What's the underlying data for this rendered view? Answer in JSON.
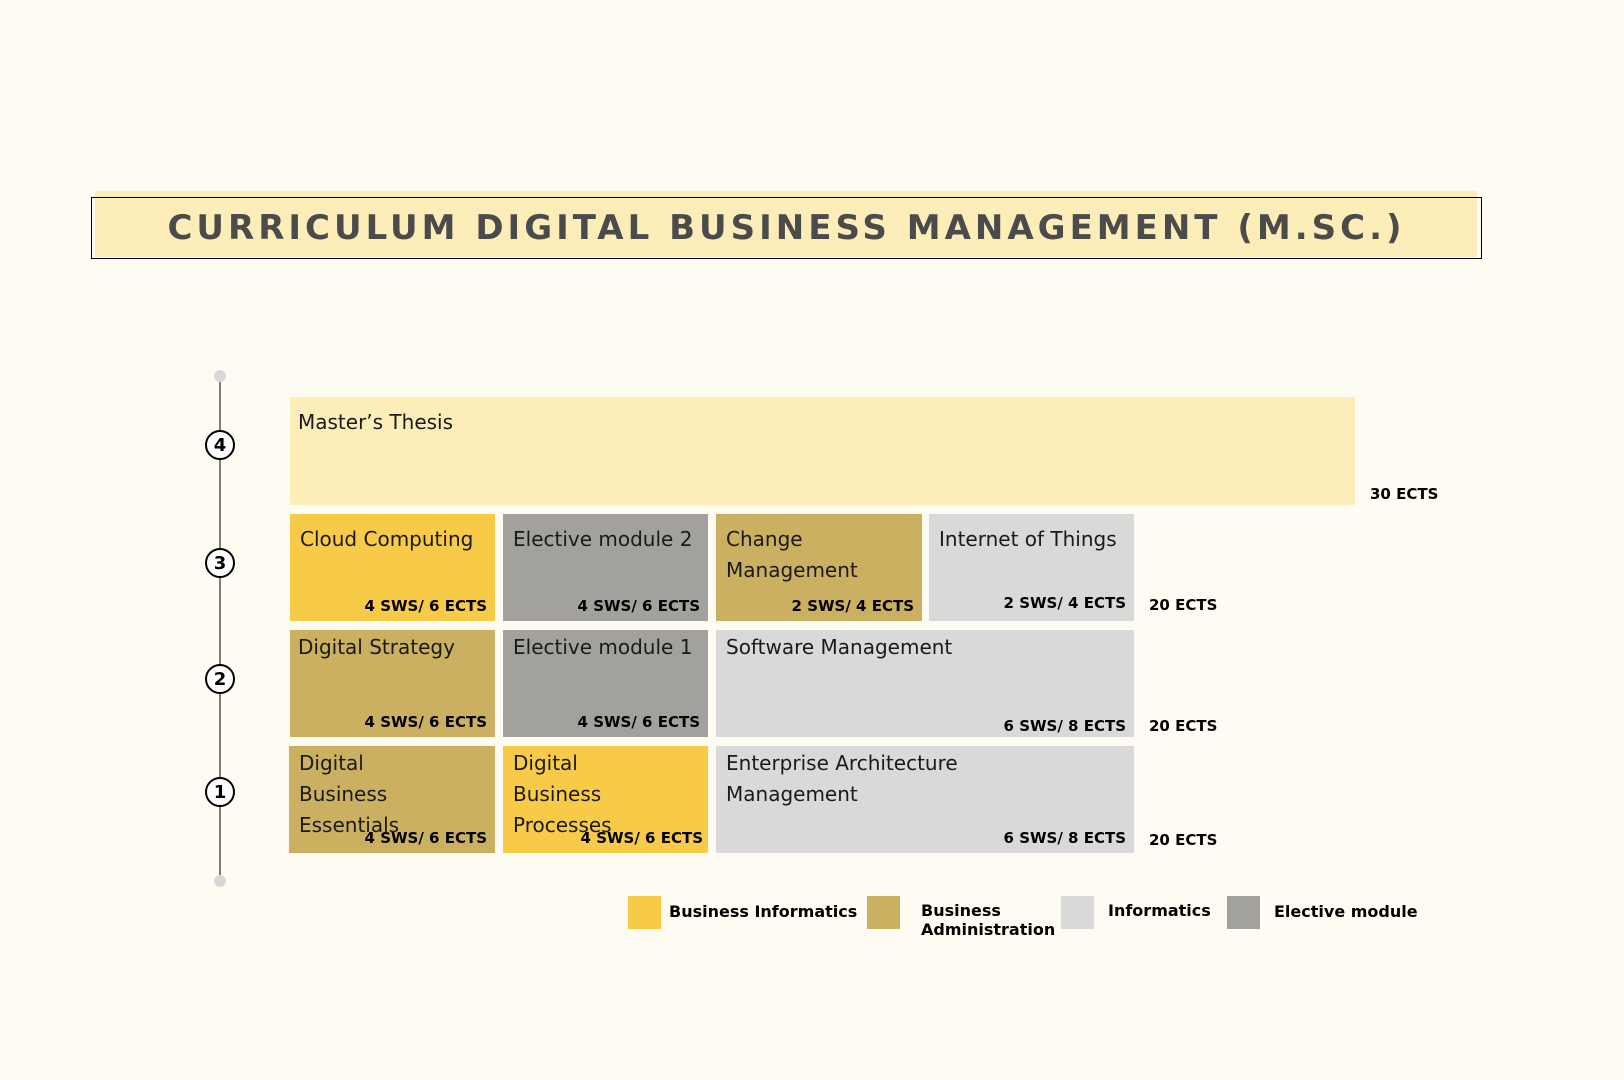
{
  "title": "CURRICULUM DIGITAL BUSINESS MANAGEMENT (M.SC.)",
  "colors": {
    "business_informatics": "#f7ca47",
    "business_administration": "#cbb061",
    "informatics": "#d9d9d9",
    "elective_module": "#a3a19c",
    "thesis": "#fdedb9",
    "title_fill": "#fdedb9"
  },
  "semesters": [
    {
      "number": "4",
      "total": "30 ECTS",
      "modules": [
        {
          "name": "Master’s Thesis",
          "credits": "",
          "category": "thesis"
        }
      ]
    },
    {
      "number": "3",
      "total": "20 ECTS",
      "modules": [
        {
          "name": "Cloud Computing",
          "credits": "4 SWS/ 6 ECTS",
          "category": "business_informatics"
        },
        {
          "name": "Elective module  2",
          "credits": "4 SWS/ 6 ECTS",
          "category": "elective_module"
        },
        {
          "name": "Change Management",
          "credits": "2 SWS/ 4 ECTS",
          "category": "business_administration"
        },
        {
          "name": "Internet of Things",
          "credits": "2 SWS/ 4 ECTS",
          "category": "informatics"
        }
      ]
    },
    {
      "number": "2",
      "total": "20 ECTS",
      "modules": [
        {
          "name": "Digital Strategy",
          "credits": "4 SWS/ 6 ECTS",
          "category": "business_administration"
        },
        {
          "name": "Elective module 1",
          "credits": "4 SWS/ 6 ECTS",
          "category": "elective_module"
        },
        {
          "name": "Software Management",
          "credits": "6 SWS/ 8 ECTS",
          "category": "informatics"
        }
      ]
    },
    {
      "number": "1",
      "total": "20 ECTS",
      "modules": [
        {
          "name": "Digital Business Essentials",
          "credits": "4 SWS/ 6 ECTS",
          "category": "business_administration"
        },
        {
          "name": "Digital Business Processes",
          "credits": "4 SWS/ 6 ECTS",
          "category": "business_informatics"
        },
        {
          "name": "Enterprise Architecture Management",
          "credits": "6 SWS/ 8 ECTS",
          "category": "informatics"
        }
      ]
    }
  ],
  "legend": [
    {
      "label": "Business Informatics",
      "category": "business_informatics"
    },
    {
      "label": "Business Administration",
      "category": "business_administration"
    },
    {
      "label": "Informatics",
      "category": "informatics"
    },
    {
      "label": "Elective module",
      "category": "elective_module"
    }
  ]
}
